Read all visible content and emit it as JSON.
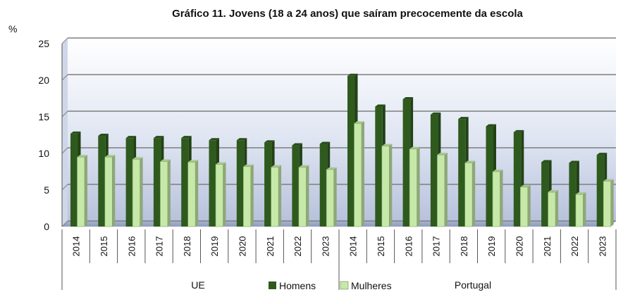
{
  "chart_data": {
    "type": "bar",
    "title": "Gráfico 11. Jovens (18 a 24 anos) que saíram precocemente da escola",
    "ylabel": "%",
    "ylim": [
      0,
      25
    ],
    "yticks": [
      "0",
      "5",
      "10",
      "15",
      "20",
      "25"
    ],
    "grid": true,
    "legend_position": "bottom-center",
    "groups": [
      {
        "label": "UE",
        "categories": [
          "2014",
          "2015",
          "2016",
          "2017",
          "2018",
          "2019",
          "2020",
          "2021",
          "2022",
          "2023"
        ]
      },
      {
        "label": "Portugal",
        "categories": [
          "2014",
          "2015",
          "2016",
          "2017",
          "2018",
          "2019",
          "2020",
          "2021",
          "2022",
          "2023"
        ]
      }
    ],
    "series": [
      {
        "name": "Homens",
        "color": "#2f5a1e",
        "values": [
          12.7,
          12.4,
          12.1,
          12.1,
          12.1,
          11.8,
          11.8,
          11.5,
          11.1,
          11.3,
          20.6,
          16.4,
          17.4,
          15.3,
          14.7,
          13.7,
          12.9,
          8.8,
          8.7,
          9.8
        ]
      },
      {
        "name": "Mulheres",
        "color": "#c6e8a8",
        "values": [
          9.5,
          9.5,
          9.2,
          8.9,
          8.8,
          8.5,
          8.2,
          8.1,
          8.1,
          7.8,
          14.1,
          11.0,
          10.6,
          9.8,
          8.7,
          7.5,
          5.4,
          4.7,
          4.4,
          6.2
        ]
      }
    ]
  }
}
